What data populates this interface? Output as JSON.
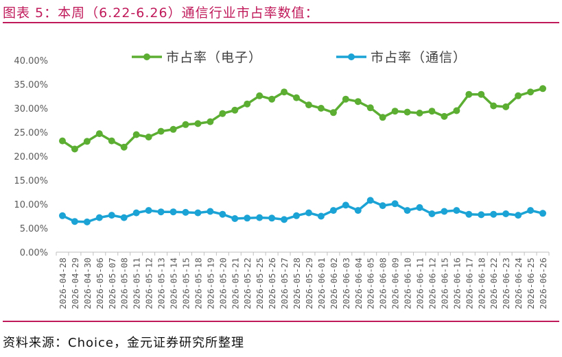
{
  "figure": {
    "title": "图表 5：本周（6.22-6.26）通信行业市占率数值：",
    "source": "资料来源：Choice，金元证券研究所整理"
  },
  "chart_data": {
    "type": "line",
    "x": [
      "2026-04-28",
      "2026-04-29",
      "2026-04-30",
      "2026-05-06",
      "2026-05-07",
      "2026-05-08",
      "2026-05-11",
      "2026-05-12",
      "2026-05-13",
      "2026-05-14",
      "2026-05-15",
      "2026-05-18",
      "2026-05-19",
      "2026-05-20",
      "2026-05-21",
      "2026-05-22",
      "2026-05-25",
      "2026-05-26",
      "2026-05-27",
      "2026-05-28",
      "2026-05-29",
      "2026-06-01",
      "2026-06-02",
      "2026-06-03",
      "2026-06-04",
      "2026-06-05",
      "2026-06-08",
      "2026-06-09",
      "2026-06-10",
      "2026-06-11",
      "2026-06-12",
      "2026-06-15",
      "2026-06-16",
      "2026-06-17",
      "2026-06-18",
      "2026-06-22",
      "2026-06-23",
      "2026-06-24",
      "2026-06-25",
      "2026-06-26"
    ],
    "series": [
      {
        "name": "市占率（电子）",
        "color": "#5BAE32",
        "values": [
          23.2,
          21.5,
          23.1,
          24.7,
          23.2,
          21.9,
          24.5,
          24.0,
          25.2,
          25.6,
          26.6,
          26.8,
          27.2,
          28.9,
          29.6,
          30.9,
          32.6,
          31.9,
          33.4,
          32.2,
          30.7,
          30.0,
          29.1,
          31.9,
          31.4,
          30.1,
          28.1,
          29.4,
          29.2,
          29.0,
          29.4,
          28.3,
          29.5,
          32.9,
          32.9,
          30.5,
          30.3,
          32.6,
          33.4,
          34.1
        ]
      },
      {
        "name": "市占率（通信）",
        "color": "#1BA3D6",
        "values": [
          7.6,
          6.4,
          6.3,
          7.2,
          7.7,
          7.2,
          8.2,
          8.7,
          8.4,
          8.4,
          8.3,
          8.2,
          8.5,
          7.9,
          7.0,
          7.1,
          7.2,
          7.1,
          6.8,
          7.6,
          8.2,
          7.5,
          8.7,
          9.8,
          8.7,
          10.8,
          9.7,
          10.1,
          8.7,
          9.3,
          8.0,
          8.5,
          8.7,
          7.9,
          7.8,
          7.9,
          8.0,
          7.7,
          8.7,
          8.1
        ]
      }
    ],
    "ylim": [
      0,
      40
    ],
    "yticks": [
      "0.00%",
      "5.00%",
      "10.00%",
      "15.00%",
      "20.00%",
      "25.00%",
      "30.00%",
      "35.00%",
      "40.00%"
    ],
    "grid": false,
    "legend_position": "top"
  }
}
